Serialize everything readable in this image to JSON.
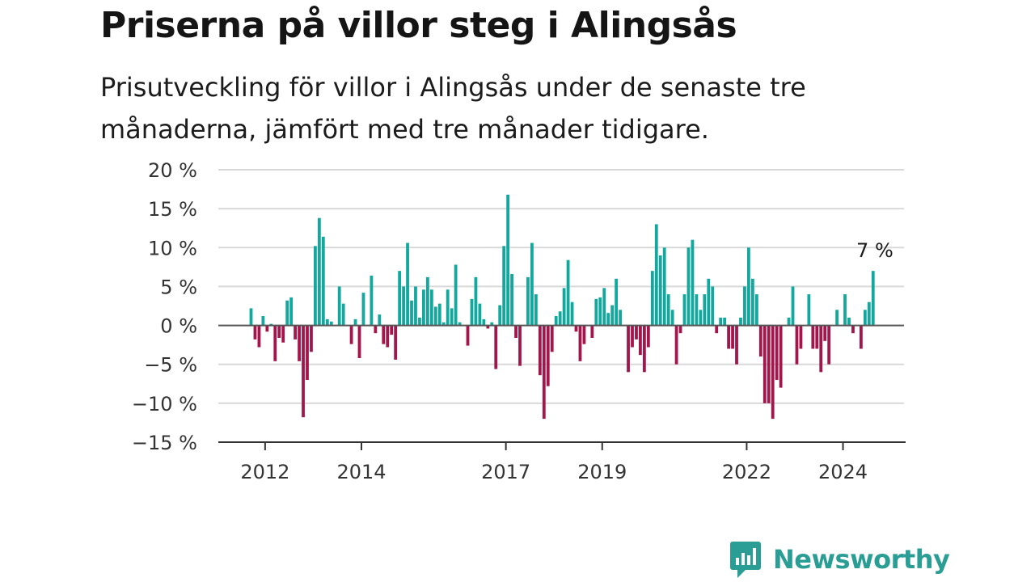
{
  "header": {
    "title": "Priserna på villor steg i Alingsås",
    "subtitle": "Prisutveckling för villor i Alingsås under de senaste tre månaderna, jämfört med tre månader tidigare."
  },
  "logo": {
    "text": "Newsworthy",
    "icon": "newsworthy-logo-icon"
  },
  "colors": {
    "positive": "#13a89e",
    "negative": "#a3164b",
    "grid": "#d9d9d9",
    "zero_line": "#555555",
    "axis": "#333333"
  },
  "chart_data": {
    "type": "bar",
    "title": "Priserna på villor steg i Alingsås",
    "subtitle": "Prisutveckling för villor i Alingsås under de senaste tre månaderna, jämfört med tre månader tidigare.",
    "xlabel": "",
    "ylabel": "",
    "unit": "%",
    "ylim": [
      -15,
      20
    ],
    "yticks": [
      20,
      15,
      10,
      5,
      0,
      -5,
      -10,
      -15
    ],
    "ytick_labels": [
      "20 %",
      "15 %",
      "10 %",
      "5 %",
      "0 %",
      "−5 %",
      "−10 %",
      "−15 %"
    ],
    "xticks": [
      {
        "label": "2012",
        "year": 2012
      },
      {
        "label": "2014",
        "year": 2014
      },
      {
        "label": "2017",
        "year": 2017
      },
      {
        "label": "2019",
        "year": 2019
      },
      {
        "label": "2022",
        "year": 2022
      },
      {
        "label": "2024",
        "year": 2024
      }
    ],
    "x_start": "2011-09",
    "interval": "month",
    "grid": true,
    "annotation": {
      "text": "7 %",
      "value": 7
    },
    "values": [
      2.2,
      -1.8,
      -2.8,
      1.2,
      -0.8,
      0.2,
      -4.6,
      -1.6,
      -2.2,
      3.2,
      3.6,
      -1.8,
      -4.6,
      -11.8,
      -7.0,
      -3.4,
      10.2,
      13.8,
      11.4,
      0.8,
      0.5,
      0.0,
      5.0,
      2.8,
      0.0,
      -2.4,
      0.8,
      -4.2,
      4.2,
      0.0,
      6.4,
      -1.0,
      1.4,
      -2.4,
      -2.8,
      -1.2,
      -4.4,
      7.0,
      5.0,
      10.6,
      3.2,
      5.0,
      1.0,
      4.6,
      6.2,
      4.6,
      2.4,
      2.8,
      0.4,
      4.6,
      2.2,
      7.8,
      0.4,
      0.0,
      -2.6,
      3.4,
      6.2,
      2.8,
      0.8,
      -0.4,
      0.4,
      -5.6,
      2.6,
      10.2,
      16.8,
      6.6,
      -1.6,
      -5.2,
      0.0,
      6.2,
      10.6,
      4.0,
      -6.4,
      -12.0,
      -7.8,
      -3.4,
      1.2,
      1.8,
      4.8,
      8.4,
      3.0,
      -0.8,
      -4.6,
      -2.4,
      0.0,
      -1.6,
      3.4,
      3.6,
      4.8,
      1.6,
      2.6,
      6.0,
      2.0,
      0.0,
      -6.0,
      -2.8,
      -1.8,
      -3.8,
      -6.0,
      -2.8,
      7.0,
      13.0,
      9.0,
      10.0,
      4.0,
      2.0,
      -5.0,
      -1.0,
      4.0,
      10.0,
      11.0,
      4.0,
      2.0,
      4.0,
      6.0,
      5.0,
      -1.0,
      1.0,
      1.0,
      -3.0,
      -3.0,
      -5.0,
      1.0,
      5.0,
      10.0,
      6.0,
      4.0,
      -4.0,
      -10.0,
      -10.0,
      -12.0,
      -7.0,
      -8.0,
      0.0,
      1.0,
      5.0,
      -5.0,
      -3.0,
      0.0,
      4.0,
      -3.0,
      -3.0,
      -6.0,
      -2.0,
      -5.0,
      0.0,
      2.0,
      0.0,
      4.0,
      1.0,
      -1.0,
      0.0,
      -3.0,
      2.0,
      3.0,
      7.0
    ]
  }
}
